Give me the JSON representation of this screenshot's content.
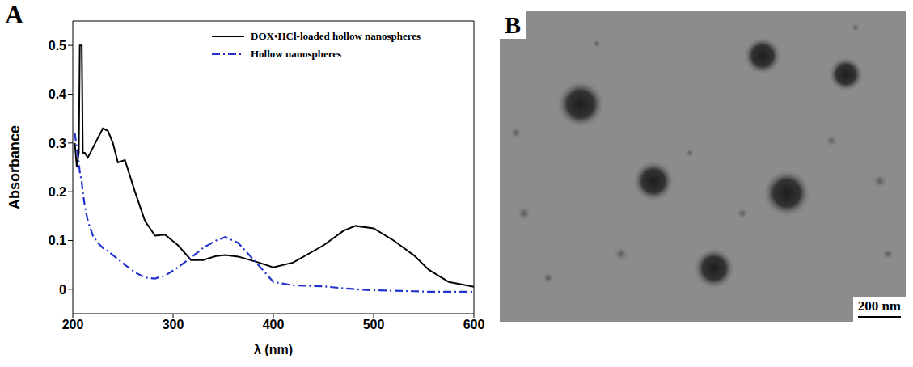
{
  "chart_data": {
    "type": "line",
    "panel": "A",
    "x_label": "λ (nm)",
    "y_label": "Absorbance",
    "x": [
      202,
      204,
      206,
      207,
      209,
      210,
      212,
      215,
      220,
      225,
      230,
      235,
      240,
      245,
      252,
      262,
      272,
      282,
      292,
      305,
      318,
      330,
      343,
      352,
      365,
      385,
      400,
      420,
      450,
      470,
      482,
      500,
      520,
      540,
      555,
      575,
      600
    ],
    "series": [
      {
        "name": "DOX•HCl-loaded hollow nanospheres",
        "color": "#000000",
        "line_style": "solid",
        "values": [
          0.3,
          0.25,
          0.28,
          0.5,
          0.5,
          0.28,
          0.28,
          0.27,
          0.29,
          0.31,
          0.33,
          0.325,
          0.3,
          0.26,
          0.265,
          0.2,
          0.14,
          0.11,
          0.112,
          0.09,
          0.06,
          0.06,
          0.068,
          0.07,
          0.067,
          0.055,
          0.045,
          0.055,
          0.09,
          0.12,
          0.13,
          0.125,
          0.1,
          0.07,
          0.04,
          0.015,
          0.005
        ]
      },
      {
        "name": "Hollow nanospheres",
        "color": "#2233cc",
        "line_style": "dashdot",
        "values": [
          0.32,
          0.29,
          0.26,
          0.24,
          0.22,
          0.2,
          0.17,
          0.14,
          0.11,
          0.095,
          0.085,
          0.078,
          0.07,
          0.062,
          0.05,
          0.035,
          0.024,
          0.022,
          0.028,
          0.045,
          0.065,
          0.085,
          0.1,
          0.107,
          0.095,
          0.05,
          0.015,
          0.008,
          0.006,
          0.002,
          0,
          -0.002,
          -0.003,
          -0.004,
          -0.005,
          -0.005,
          -0.005
        ]
      }
    ],
    "xlim": [
      200,
      600
    ],
    "xticks": [
      200,
      300,
      400,
      500,
      600
    ],
    "ylim": [
      -0.05,
      0.55
    ],
    "yticks": [
      0,
      0.1,
      0.2,
      0.3,
      0.4,
      0.5
    ],
    "grid": false,
    "legend": "top right"
  },
  "image": {
    "panel": "B",
    "scale_bar": "200 nm"
  }
}
